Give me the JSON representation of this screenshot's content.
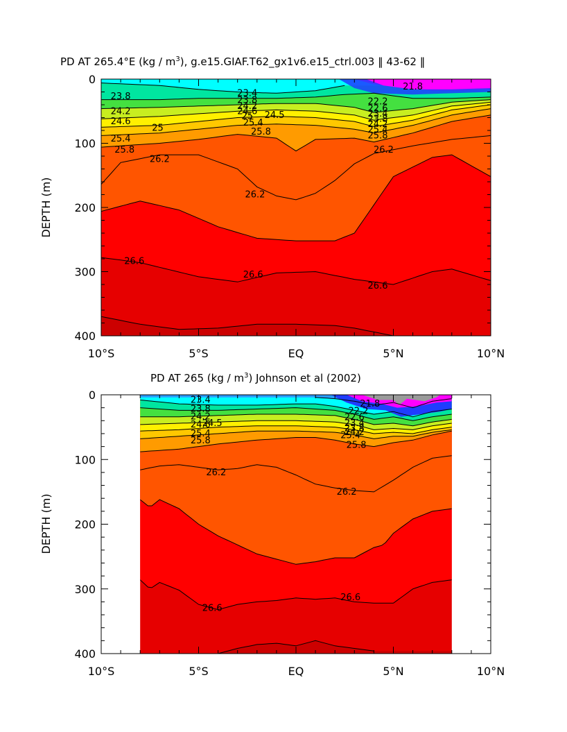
{
  "chart_data": [
    {
      "type": "contour",
      "title": "PD AT 265.4°E (kg / m³), g.e15.GIAF.T62_gx1v6.e15_ctrl.003 ‖ 43-62 ‖",
      "title_parts": {
        "before": "PD AT 265.4°E (kg / m",
        "sup": "3",
        "after": "), g.e15.GIAF.T62_gx1v6.e15_ctrl.003 ‖ 43-62 ‖"
      },
      "xlabel": "",
      "ylabel": "DEPTH (m)",
      "xlim": [
        -10,
        10
      ],
      "ylim": [
        400,
        0
      ],
      "data_x_range": [
        -10,
        10
      ],
      "x_ticks": [
        -10,
        -5,
        0,
        5,
        10
      ],
      "x_tick_labels": [
        "10°S",
        "5°S",
        "EQ",
        "5°N",
        "10°N"
      ],
      "y_ticks": [
        0,
        100,
        200,
        300,
        400
      ],
      "y_tick_labels": [
        "0",
        "100",
        "200",
        "300",
        "400"
      ],
      "contour_levels": [
        21.8,
        22.2,
        22.6,
        23.0,
        23.4,
        23.8,
        24.2,
        24.6,
        25.0,
        25.4,
        25.8,
        26.2,
        26.6,
        27.0
      ],
      "isopycnals": [
        {
          "level": 23.4,
          "x": [
            -10,
            -7,
            -5,
            -3,
            -1,
            1,
            2.5
          ],
          "depth": [
            6,
            10,
            16,
            20,
            22,
            18,
            10
          ]
        },
        {
          "level": 23.8,
          "x": [
            -10,
            -7,
            -5,
            -3,
            -1,
            1,
            2.5,
            4,
            6,
            8,
            10
          ],
          "depth": [
            32,
            32,
            30,
            30,
            30,
            28,
            24,
            22,
            30,
            30,
            28
          ]
        },
        {
          "level": 24.2,
          "x": [
            -10,
            -7,
            -5,
            -3,
            -1,
            1,
            3,
            4,
            6,
            8,
            10
          ],
          "depth": [
            46,
            44,
            42,
            40,
            38,
            38,
            44,
            52,
            46,
            36,
            32
          ]
        },
        {
          "level": 24.6,
          "x": [
            -10,
            -7,
            -5,
            -3,
            -1,
            1,
            3,
            4,
            6,
            8,
            10
          ],
          "depth": [
            62,
            58,
            54,
            50,
            48,
            50,
            56,
            64,
            56,
            42,
            36
          ]
        },
        {
          "level": 25.0,
          "x": [
            -10,
            -7,
            -5,
            -3,
            -1,
            1,
            3,
            4,
            6,
            8,
            10
          ],
          "depth": [
            75,
            72,
            66,
            60,
            58,
            60,
            66,
            74,
            64,
            48,
            40
          ]
        },
        {
          "level": 25.4,
          "x": [
            -10,
            -7,
            -5,
            -3,
            -1,
            1,
            3,
            4,
            6,
            8,
            10
          ],
          "depth": [
            88,
            84,
            78,
            72,
            70,
            72,
            78,
            84,
            72,
            56,
            46
          ]
        },
        {
          "level": 25.8,
          "x": [
            -10,
            -7,
            -5,
            -3,
            -1,
            0,
            1,
            3,
            4,
            6,
            8,
            10
          ],
          "depth": [
            106,
            100,
            94,
            86,
            92,
            112,
            94,
            92,
            98,
            84,
            66,
            56
          ]
        },
        {
          "level": 26.2,
          "x": [
            -10,
            -9,
            -7,
            -5,
            -3,
            -2,
            -1,
            0,
            1,
            2,
            3,
            4,
            6,
            8,
            10
          ],
          "depth": [
            164,
            130,
            118,
            118,
            140,
            168,
            182,
            188,
            178,
            158,
            132,
            116,
            104,
            94,
            88
          ]
        },
        {
          "level": 26.4,
          "x": [
            -10,
            -8,
            -6,
            -4,
            -2,
            0,
            2,
            3,
            4,
            5,
            7,
            8,
            10
          ],
          "depth": [
            206,
            190,
            204,
            230,
            248,
            252,
            252,
            240,
            196,
            152,
            122,
            118,
            152
          ]
        },
        {
          "level": 26.6,
          "x": [
            -10,
            -8,
            -5,
            -3,
            -1,
            1,
            3,
            5,
            7,
            8,
            10
          ],
          "depth": [
            278,
            286,
            308,
            316,
            302,
            300,
            312,
            320,
            300,
            296,
            314
          ]
        },
        {
          "level": 26.8,
          "x": [
            -10,
            -8,
            -6,
            -4,
            -2,
            0,
            2,
            3,
            4,
            5
          ],
          "depth": [
            370,
            382,
            390,
            388,
            382,
            382,
            384,
            388,
            394,
            400
          ]
        }
      ],
      "contour_labels": [
        {
          "text": "23.8",
          "x": -9.0,
          "depth": 27
        },
        {
          "text": "24.2",
          "x": -9.0,
          "depth": 50
        },
        {
          "text": "24.6",
          "x": -9.0,
          "depth": 66
        },
        {
          "text": "25",
          "x": -7.1,
          "depth": 76
        },
        {
          "text": "25.4",
          "x": -9.0,
          "depth": 93
        },
        {
          "text": "25.8",
          "x": -8.8,
          "depth": 110
        },
        {
          "text": "26.2",
          "x": -7.0,
          "depth": 125
        },
        {
          "text": "23.4",
          "x": -2.5,
          "depth": 22
        },
        {
          "text": "23.8",
          "x": -2.5,
          "depth": 33
        },
        {
          "text": "24.2",
          "x": -2.5,
          "depth": 42
        },
        {
          "text": "24.6",
          "x": -2.5,
          "depth": 50
        },
        {
          "text": "25",
          "x": -2.5,
          "depth": 58
        },
        {
          "text": "24.5",
          "x": -1.1,
          "depth": 56
        },
        {
          "text": "25.4",
          "x": -2.2,
          "depth": 68
        },
        {
          "text": "25.8",
          "x": -1.8,
          "depth": 82
        },
        {
          "text": "21.8",
          "x": 6.0,
          "depth": 12
        },
        {
          "text": "22.2",
          "x": 4.2,
          "depth": 35
        },
        {
          "text": "22.6",
          "x": 4.2,
          "depth": 46
        },
        {
          "text": "23.4",
          "x": 4.2,
          "depth": 54
        },
        {
          "text": "23.8",
          "x": 4.2,
          "depth": 62
        },
        {
          "text": "24.2",
          "x": 4.2,
          "depth": 70
        },
        {
          "text": "25.4",
          "x": 4.2,
          "depth": 79
        },
        {
          "text": "25.8",
          "x": 4.2,
          "depth": 88
        },
        {
          "text": "26.2",
          "x": 4.5,
          "depth": 110
        },
        {
          "text": "26.2",
          "x": -2.1,
          "depth": 180
        },
        {
          "text": "26.6",
          "x": -8.3,
          "depth": 284
        },
        {
          "text": "26.6",
          "x": -2.2,
          "depth": 305
        },
        {
          "text": "26.6",
          "x": 4.2,
          "depth": 322
        }
      ]
    },
    {
      "type": "contour",
      "title": "PD AT 265 (kg / m³) Johnson et al (2002)",
      "title_parts": {
        "before": "PD AT 265 (kg / m",
        "sup": "3",
        "after": ") Johnson et al (2002)"
      },
      "xlabel": "",
      "ylabel": "DEPTH (m)",
      "xlim": [
        -10,
        10
      ],
      "ylim": [
        400,
        0
      ],
      "data_x_range": [
        -8,
        8
      ],
      "x_ticks": [
        -10,
        -5,
        0,
        5,
        10
      ],
      "x_tick_labels": [
        "10°S",
        "5°S",
        "EQ",
        "5°N",
        "10°N"
      ],
      "y_ticks": [
        0,
        100,
        200,
        300,
        400
      ],
      "y_tick_labels": [
        "0",
        "100",
        "200",
        "300",
        "400"
      ],
      "contour_levels": [
        21.8,
        22.2,
        22.6,
        23.0,
        23.4,
        23.8,
        24.2,
        24.6,
        25.0,
        25.4,
        25.8,
        26.2,
        26.6,
        27.0
      ],
      "isopycnals": [
        {
          "level": 23.0,
          "x": [
            1,
            2,
            3,
            4,
            5,
            6,
            7,
            8
          ],
          "depth": [
            4,
            6,
            10,
            16,
            12,
            20,
            10,
            6
          ]
        },
        {
          "level": 23.4,
          "x": [
            -8,
            -6,
            -4,
            -2,
            0,
            1,
            2,
            3,
            4,
            5,
            6,
            7,
            8
          ],
          "depth": [
            8,
            14,
            16,
            16,
            14,
            14,
            18,
            24,
            30,
            26,
            34,
            26,
            22
          ]
        },
        {
          "level": 23.8,
          "x": [
            -8,
            -6,
            -4,
            -2,
            0,
            2,
            3,
            4,
            5,
            6,
            7,
            8
          ],
          "depth": [
            20,
            24,
            24,
            22,
            20,
            24,
            30,
            38,
            34,
            40,
            34,
            30
          ]
        },
        {
          "level": 24.2,
          "x": [
            -8,
            -6,
            -4,
            -2,
            0,
            2,
            3,
            4,
            5,
            6,
            7,
            8
          ],
          "depth": [
            34,
            34,
            32,
            30,
            30,
            32,
            38,
            46,
            44,
            48,
            42,
            38
          ]
        },
        {
          "level": 24.6,
          "x": [
            -8,
            -6,
            -4,
            -2,
            0,
            2,
            3,
            4,
            5,
            6,
            7,
            8
          ],
          "depth": [
            46,
            44,
            42,
            40,
            40,
            42,
            46,
            54,
            52,
            54,
            48,
            44
          ]
        },
        {
          "level": 25.0,
          "x": [
            -8,
            -6,
            -4,
            -2,
            0,
            2,
            3,
            4,
            5,
            6,
            7,
            8
          ],
          "depth": [
            56,
            54,
            50,
            48,
            48,
            50,
            54,
            60,
            58,
            60,
            54,
            50
          ]
        },
        {
          "level": 25.4,
          "x": [
            -8,
            -6,
            -4,
            -2,
            0,
            2,
            3,
            4,
            5,
            6,
            7,
            8
          ],
          "depth": [
            68,
            64,
            60,
            56,
            56,
            58,
            62,
            68,
            64,
            64,
            58,
            54
          ]
        },
        {
          "level": 25.8,
          "x": [
            -8,
            -6,
            -4,
            -2,
            0,
            1,
            2,
            3,
            4,
            5,
            6,
            7,
            8
          ],
          "depth": [
            88,
            84,
            76,
            70,
            66,
            66,
            70,
            76,
            80,
            74,
            70,
            62,
            56
          ]
        },
        {
          "level": 26.2,
          "x": [
            -8,
            -7,
            -6,
            -5,
            -4,
            -3,
            -2,
            -1,
            0,
            1,
            2,
            3,
            4,
            5,
            6,
            7,
            8
          ],
          "depth": [
            116,
            110,
            108,
            112,
            116,
            114,
            108,
            112,
            124,
            138,
            144,
            148,
            150,
            132,
            112,
            98,
            94
          ]
        },
        {
          "level": 26.4,
          "x": [
            -8,
            -7.5,
            -7,
            -6,
            -5,
            -4,
            -3,
            -2,
            -1,
            0,
            1,
            2,
            3,
            4,
            4.5,
            5,
            6,
            7,
            8
          ],
          "depth": [
            162,
            174,
            162,
            176,
            200,
            218,
            232,
            246,
            254,
            262,
            258,
            252,
            252,
            236,
            232,
            214,
            192,
            180,
            176
          ]
        },
        {
          "level": 26.6,
          "x": [
            -8,
            -7.5,
            -7,
            -6,
            -5,
            -4,
            -3,
            -2,
            -1,
            0,
            1,
            2,
            3,
            4,
            5,
            6,
            7,
            8
          ],
          "depth": [
            286,
            300,
            290,
            302,
            324,
            332,
            324,
            320,
            318,
            314,
            316,
            314,
            320,
            322,
            322,
            300,
            290,
            286
          ]
        },
        {
          "level": 26.8,
          "x": [
            -4,
            -3,
            -2,
            -1,
            0,
            1,
            2,
            3,
            4
          ],
          "depth": [
            400,
            392,
            386,
            384,
            388,
            380,
            388,
            392,
            396
          ]
        }
      ],
      "contour_labels": [
        {
          "text": "23.4",
          "x": -4.9,
          "depth": 8
        },
        {
          "text": "23.8",
          "x": -4.9,
          "depth": 22
        },
        {
          "text": "24.2",
          "x": -4.9,
          "depth": 34
        },
        {
          "text": "24.6",
          "x": -4.9,
          "depth": 46
        },
        {
          "text": "24.5",
          "x": -4.3,
          "depth": 44
        },
        {
          "text": "25.4",
          "x": -4.9,
          "depth": 60
        },
        {
          "text": "25.8",
          "x": -4.9,
          "depth": 71
        },
        {
          "text": "21.8",
          "x": 3.8,
          "depth": 14
        },
        {
          "text": "22.2",
          "x": 3.2,
          "depth": 25
        },
        {
          "text": "22.6",
          "x": 3.0,
          "depth": 35
        },
        {
          "text": "23.4",
          "x": 3.0,
          "depth": 44
        },
        {
          "text": "23.8",
          "x": 3.0,
          "depth": 52
        },
        {
          "text": "24.2",
          "x": 3.0,
          "depth": 58
        },
        {
          "text": "25.4",
          "x": 2.8,
          "depth": 63
        },
        {
          "text": "25.8",
          "x": 3.1,
          "depth": 78
        },
        {
          "text": "26.2",
          "x": -4.1,
          "depth": 120
        },
        {
          "text": "26.2",
          "x": 2.6,
          "depth": 150
        },
        {
          "text": "26.6",
          "x": -4.3,
          "depth": 330
        },
        {
          "text": "26.6",
          "x": 2.8,
          "depth": 313
        }
      ]
    }
  ],
  "colors": {
    "band_fills": [
      "#ff00ff",
      "#ff00ff",
      "#7a26ff",
      "#1f3dff",
      "#2a9cff",
      "#00ffff",
      "#00e6a0",
      "#44e040",
      "#c8ee20",
      "#fff000",
      "#ffc800",
      "#ff9b00",
      "#ff5500",
      "#ff0000",
      "#e60000",
      "#cc0000"
    ],
    "gray_cap": "#9a9a9a"
  }
}
